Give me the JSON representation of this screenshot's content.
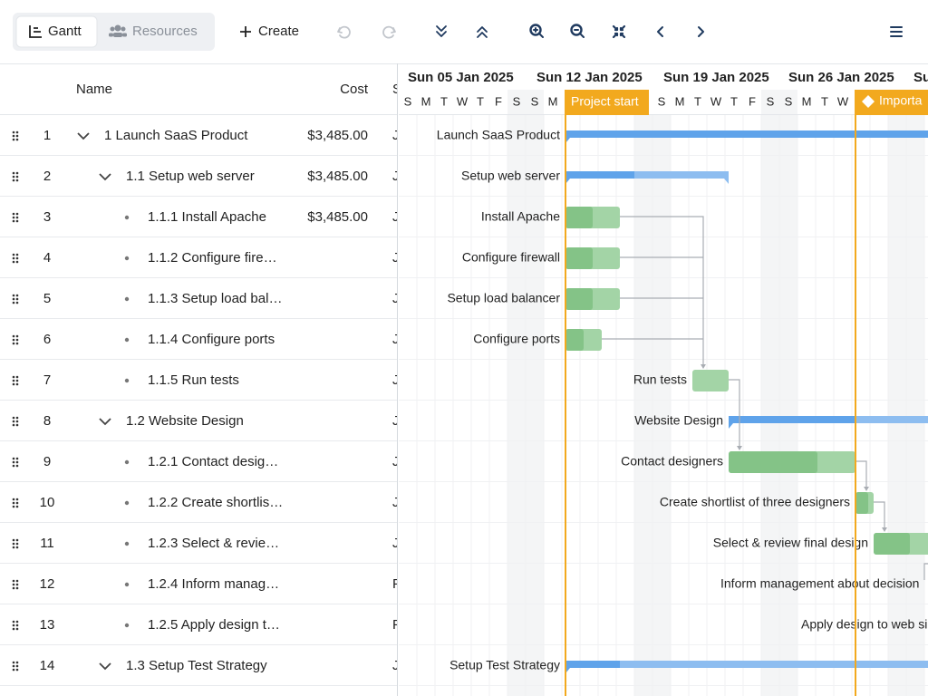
{
  "toolbar": {
    "tabs": [
      "Gantt",
      "Resources"
    ],
    "create": "Create"
  },
  "grid": {
    "columns": [
      "Name",
      "Cost",
      "S"
    ],
    "rows": [
      {
        "id": "1",
        "name": "1 Launch SaaS Product",
        "cost": "$3,485.00",
        "start": "J",
        "bar_label": "Launch SaaS Product"
      },
      {
        "id": "2",
        "name": "1.1 Setup web server",
        "cost": "$3,485.00",
        "start": "J",
        "bar_label": "Setup web server"
      },
      {
        "id": "3",
        "name": "1.1.1 Install Apache",
        "cost": "$3,485.00",
        "start": "J",
        "bar_label": "Install Apache"
      },
      {
        "id": "4",
        "name": "1.1.2 Configure fire…",
        "start": "J",
        "bar_label": "Configure firewall"
      },
      {
        "id": "5",
        "name": "1.1.3 Setup load bal…",
        "start": "J",
        "bar_label": "Setup load balancer"
      },
      {
        "id": "6",
        "name": "1.1.4 Configure ports",
        "start": "J",
        "bar_label": "Configure ports"
      },
      {
        "id": "7",
        "name": "1.1.5 Run tests",
        "start": "J",
        "bar_label": "Run tests"
      },
      {
        "id": "8",
        "name": "1.2 Website Design",
        "start": "J",
        "bar_label": "Website Design"
      },
      {
        "id": "9",
        "name": "1.2.1 Contact desig…",
        "start": "J",
        "bar_label": "Contact designers"
      },
      {
        "id": "10",
        "name": "1.2.2 Create shortlis…",
        "start": "J",
        "bar_label": "Create shortlist of three designers"
      },
      {
        "id": "11",
        "name": "1.2.3 Select & revie…",
        "start": "J",
        "bar_label": "Select & review final design"
      },
      {
        "id": "12",
        "name": "1.2.4 Inform manag…",
        "start": "F",
        "bar_label": "Inform management about decision"
      },
      {
        "id": "13",
        "name": "1.2.5 Apply design t…",
        "start": "F",
        "bar_label": "Apply design to web si"
      },
      {
        "id": "14",
        "name": "1.3 Setup Test Strategy",
        "start": "J",
        "bar_label": "Setup Test Strategy"
      }
    ]
  },
  "timeline": {
    "weeks": [
      "Sun 05 Jan 2025",
      "Sun 12 Jan 2025",
      "Sun 19 Jan 2025",
      "Sun 26 Jan 2025",
      "Su"
    ],
    "days_a": [
      "S",
      "M",
      "T",
      "W",
      "T",
      "F",
      "S",
      "S",
      "M"
    ],
    "days_b": [
      "S",
      "M",
      "T",
      "W",
      "T",
      "F",
      "S",
      "S",
      "M",
      "T",
      "W"
    ],
    "markers": [
      "Project start",
      "Importa"
    ]
  }
}
